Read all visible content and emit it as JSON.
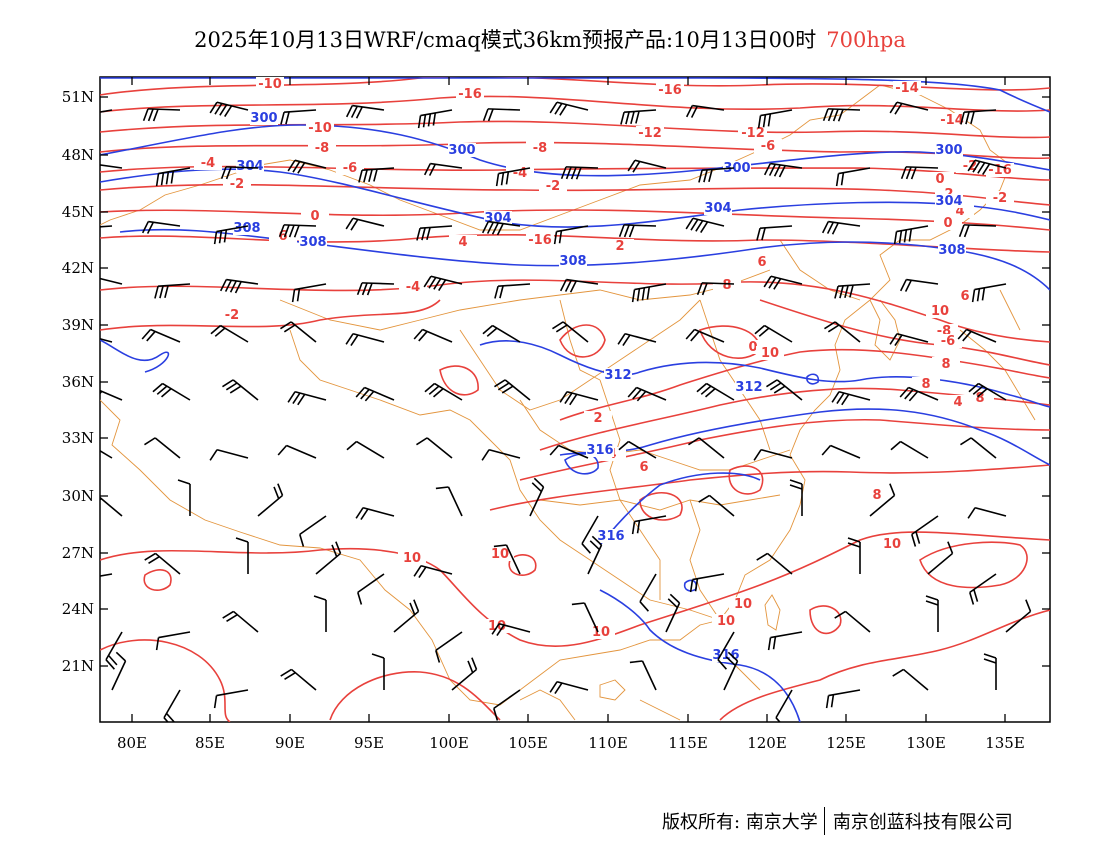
{
  "header": {
    "title": "2025年10月13日WRF/cmaq模式36km预报产品:10月13日00时",
    "level": "700hpa"
  },
  "axes": {
    "lat_labels": [
      "51N",
      "48N",
      "45N",
      "42N",
      "39N",
      "36N",
      "33N",
      "30N",
      "27N",
      "24N",
      "21N"
    ],
    "lon_labels": [
      "80E",
      "85E",
      "90E",
      "95E",
      "100E",
      "105E",
      "110E",
      "115E",
      "120E",
      "125E",
      "130E",
      "135E"
    ]
  },
  "colors": {
    "temperature": "#e8413c",
    "height": "#2a3fe0",
    "border": "#e3953e",
    "barb": "#000000"
  },
  "legend_note": "red = temperature (°C), blue = geopotential height (dagpm), black = wind barbs",
  "contour_labels": {
    "temperature": [
      "-10",
      "-16",
      "-16",
      "-14",
      "-12",
      "-10",
      "-8",
      "-6",
      "-4",
      "-2",
      "-14",
      "-16",
      "-16",
      "-12",
      "-10",
      "-8",
      "-6",
      "-4",
      "-2",
      "0",
      "2",
      "4",
      "6",
      "8",
      "10",
      "-8",
      "-6",
      "-4",
      "-2",
      "0",
      "2",
      "4",
      "6",
      "8",
      "10",
      "10",
      "10",
      "10",
      "10",
      "10",
      "10",
      "8",
      "8",
      "4",
      "-2",
      "0",
      "2",
      "4",
      "6",
      "8",
      "-2",
      "0",
      "10",
      "6"
    ],
    "height": [
      "300",
      "300",
      "300",
      "304",
      "304",
      "304",
      "308",
      "308",
      "308",
      "312",
      "312",
      "316",
      "316",
      "316",
      "300",
      "304",
      "308"
    ]
  },
  "footer": {
    "copyright_label": "版权所有:",
    "org1": "南京大学",
    "org2": "南京创蓝科技有限公司"
  }
}
